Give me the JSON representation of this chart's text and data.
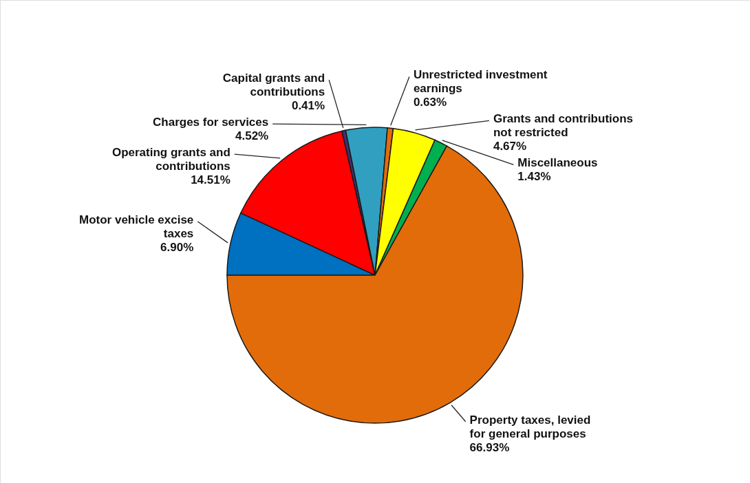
{
  "chart_data": {
    "type": "pie",
    "categories": [
      "Motor vehicle excise taxes",
      "Operating grants and contributions",
      "Capital grants and contributions",
      "Charges for services",
      "Unrestricted investment earnings",
      "Grants and contributions not restricted",
      "Miscellaneous",
      "Property taxes, levied for general purposes"
    ],
    "values": [
      6.9,
      14.51,
      0.41,
      4.52,
      0.63,
      4.67,
      1.43,
      66.93
    ],
    "value_labels": [
      "6.90%",
      "14.51%",
      "0.41%",
      "4.52%",
      "0.63%",
      "4.67%",
      "1.43%",
      "66.93%"
    ],
    "colors": [
      "#0070c0",
      "#ff0000",
      "#403070",
      "#31a0c0",
      "#e36c0a",
      "#ffff00",
      "#00b050",
      "#e36c0a"
    ]
  }
}
